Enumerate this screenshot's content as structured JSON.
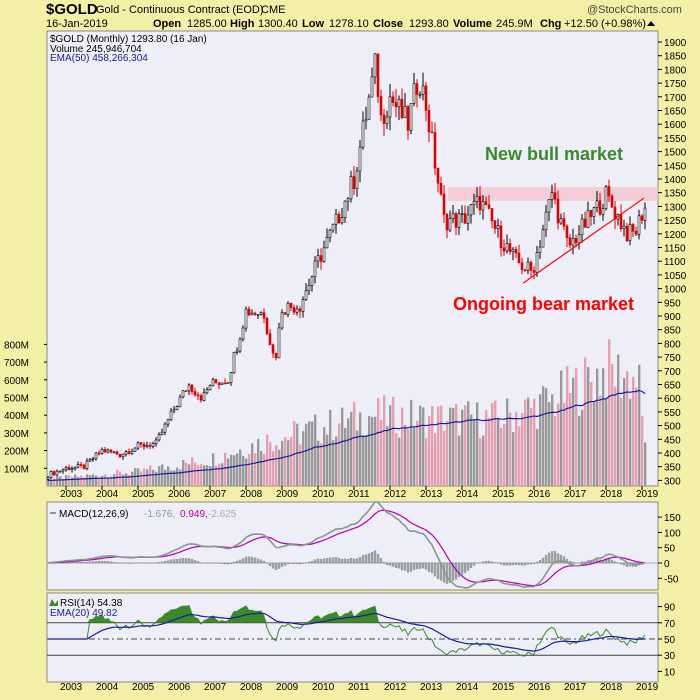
{
  "header": {
    "symbol": "$GOLD",
    "name": "Gold - Continuous Contract (EOD)",
    "exchange": "CME",
    "brand": "@StockCharts.com",
    "date": "16-Jan-2019",
    "open_label": "Open",
    "open": "1285.00",
    "high_label": "High",
    "high": "1300.40",
    "low_label": "Low",
    "low": "1278.10",
    "close_label": "Close",
    "close": "1293.80",
    "volume_label": "Volume",
    "volume": "245.9M",
    "chg_label": "Chg",
    "chg": "+12.50 (+0.98%)"
  },
  "legend": {
    "price": "$GOLD (Monthly) 1293.80 (16 Jan)",
    "volume": "Volume 245,946,704",
    "ema": "EMA(50) 458,266,304",
    "macd_name": "MACD(12,26,9)",
    "macd_v1": "-1.676,",
    "macd_v2": "0.949,",
    "macd_v3": "-2.625",
    "rsi": "RSI(14) 54.38",
    "rsi_ema": "EMA(20) 49.82"
  },
  "annotations": {
    "bull": "New bull market",
    "bear": "Ongoing bear market"
  },
  "colors": {
    "up": "#000000",
    "down": "#e00000",
    "ema": "#1a1aa0",
    "macd": "#8c9494",
    "signal": "#b000b0",
    "bull": "#3a8a2a",
    "bear": "#ff0000",
    "band": "#f4c4cc"
  },
  "chart_data": {
    "type": "candlestick",
    "title": "$GOLD (Monthly)",
    "x_ticks": [
      "2003",
      "2004",
      "2005",
      "2006",
      "2007",
      "2008",
      "2009",
      "2010",
      "2011",
      "2012",
      "2013",
      "2014",
      "2015",
      "2016",
      "2017",
      "2018",
      "2019"
    ],
    "price_ticks": [
      "1900",
      "1850",
      "1800",
      "1750",
      "1700",
      "1650",
      "1600",
      "1550",
      "1500",
      "1450",
      "1400",
      "1350",
      "1300",
      "1250",
      "1200",
      "1150",
      "1100",
      "1050",
      "1000",
      "950",
      "900",
      "850",
      "800",
      "750",
      "700",
      "650",
      "600",
      "550",
      "500",
      "450",
      "400",
      "350",
      "300"
    ],
    "price_ylim": [
      300,
      1900
    ],
    "volume_ticks": [
      "800M",
      "700M",
      "600M",
      "500M",
      "400M",
      "300M",
      "200M",
      "100M"
    ],
    "price_anchors": [
      [
        2002.5,
        320
      ],
      [
        2003.0,
        345
      ],
      [
        2003.5,
        350
      ],
      [
        2004.0,
        410
      ],
      [
        2004.5,
        395
      ],
      [
        2005.0,
        425
      ],
      [
        2005.5,
        435
      ],
      [
        2006.0,
        560
      ],
      [
        2006.4,
        650
      ],
      [
        2006.8,
        600
      ],
      [
        2007.0,
        650
      ],
      [
        2007.5,
        670
      ],
      [
        2008.0,
        920
      ],
      [
        2008.5,
        910
      ],
      [
        2008.8,
        730
      ],
      [
        2009.0,
        930
      ],
      [
        2009.5,
        940
      ],
      [
        2010.0,
        1100
      ],
      [
        2010.5,
        1240
      ],
      [
        2011.0,
        1400
      ],
      [
        2011.6,
        1820
      ],
      [
        2011.75,
        1620
      ],
      [
        2012.0,
        1700
      ],
      [
        2012.5,
        1600
      ],
      [
        2012.8,
        1780
      ],
      [
        2013.0,
        1670
      ],
      [
        2013.5,
        1250
      ],
      [
        2014.0,
        1250
      ],
      [
        2014.5,
        1320
      ],
      [
        2015.0,
        1200
      ],
      [
        2015.5,
        1100
      ],
      [
        2015.95,
        1060
      ],
      [
        2016.5,
        1350
      ],
      [
        2016.95,
        1150
      ],
      [
        2017.5,
        1250
      ],
      [
        2018.0,
        1340
      ],
      [
        2018.6,
        1200
      ],
      [
        2018.8,
        1200
      ],
      [
        2019.05,
        1294
      ]
    ],
    "volume_anchors": [
      [
        2002.5,
        40
      ],
      [
        2005.0,
        80
      ],
      [
        2007.0,
        150
      ],
      [
        2008.5,
        250
      ],
      [
        2011.5,
        400
      ],
      [
        2013.0,
        380
      ],
      [
        2015.0,
        380
      ],
      [
        2016.5,
        480
      ],
      [
        2018.0,
        650
      ],
      [
        2018.9,
        600
      ],
      [
        2019.05,
        246
      ]
    ],
    "resistance_band": [
      1320,
      1370
    ],
    "trendline": [
      [
        2015.7,
        1020
      ],
      [
        2019.05,
        1330
      ]
    ],
    "macd_ticks": [
      "150",
      "100",
      "50",
      "0",
      "-50"
    ],
    "rsi_ticks": [
      "90",
      "70",
      "50",
      "30",
      "10"
    ]
  }
}
